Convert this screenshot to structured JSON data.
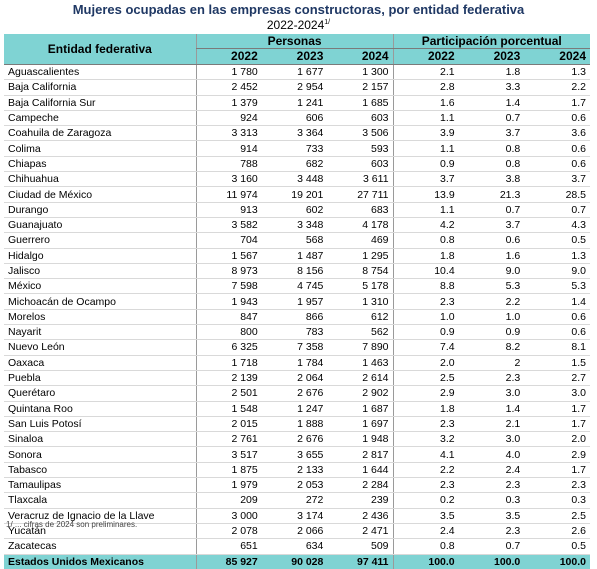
{
  "title": "Mujeres ocupadas en las empresas constructoras, por entidad federativa",
  "subtitle": "2022-2024",
  "subtitle_note": "1/",
  "headers": {
    "entity": "Entidad federativa",
    "group_persons": "Personas",
    "group_share": "Participación porcentual",
    "years": [
      "2022",
      "2023",
      "2024",
      "2022",
      "2023",
      "2024"
    ]
  },
  "rows": [
    [
      "Aguascalientes",
      "1 780",
      "1 677",
      "1 300",
      "2.1",
      "1.8",
      "1.3"
    ],
    [
      "Baja California",
      "2 452",
      "2 954",
      "2 157",
      "2.8",
      "3.3",
      "2.2"
    ],
    [
      "Baja California Sur",
      "1 379",
      "1 241",
      "1 685",
      "1.6",
      "1.4",
      "1.7"
    ],
    [
      "Campeche",
      "924",
      "606",
      "603",
      "1.1",
      "0.7",
      "0.6"
    ],
    [
      "Coahuila de Zaragoza",
      "3 313",
      "3 364",
      "3 506",
      "3.9",
      "3.7",
      "3.6"
    ],
    [
      "Colima",
      "914",
      "733",
      "593",
      "1.1",
      "0.8",
      "0.6"
    ],
    [
      "Chiapas",
      "788",
      "682",
      "603",
      "0.9",
      "0.8",
      "0.6"
    ],
    [
      "Chihuahua",
      "3 160",
      "3 448",
      "3 611",
      "3.7",
      "3.8",
      "3.7"
    ],
    [
      "Ciudad de México",
      "11 974",
      "19 201",
      "27 711",
      "13.9",
      "21.3",
      "28.5"
    ],
    [
      "Durango",
      "913",
      "602",
      "683",
      "1.1",
      "0.7",
      "0.7"
    ],
    [
      "Guanajuato",
      "3 582",
      "3 348",
      "4 178",
      "4.2",
      "3.7",
      "4.3"
    ],
    [
      "Guerrero",
      "704",
      "568",
      "469",
      "0.8",
      "0.6",
      "0.5"
    ],
    [
      "Hidalgo",
      "1 567",
      "1 487",
      "1 295",
      "1.8",
      "1.6",
      "1.3"
    ],
    [
      "Jalisco",
      "8 973",
      "8 156",
      "8 754",
      "10.4",
      "9.0",
      "9.0"
    ],
    [
      "México",
      "7 598",
      "4 745",
      "5 178",
      "8.8",
      "5.3",
      "5.3"
    ],
    [
      "Michoacán de Ocampo",
      "1 943",
      "1 957",
      "1 310",
      "2.3",
      "2.2",
      "1.4"
    ],
    [
      "Morelos",
      "847",
      "866",
      "612",
      "1.0",
      "1.0",
      "0.6"
    ],
    [
      "Nayarit",
      "800",
      "783",
      "562",
      "0.9",
      "0.9",
      "0.6"
    ],
    [
      "Nuevo León",
      "6 325",
      "7 358",
      "7 890",
      "7.4",
      "8.2",
      "8.1"
    ],
    [
      "Oaxaca",
      "1 718",
      "1 784",
      "1 463",
      "2.0",
      "2",
      "1.5"
    ],
    [
      "Puebla",
      "2 139",
      "2 064",
      "2 614",
      "2.5",
      "2.3",
      "2.7"
    ],
    [
      "Querétaro",
      "2 501",
      "2 676",
      "2 902",
      "2.9",
      "3.0",
      "3.0"
    ],
    [
      "Quintana Roo",
      "1 548",
      "1 247",
      "1 687",
      "1.8",
      "1.4",
      "1.7"
    ],
    [
      "San Luis Potosí",
      "2 015",
      "1 888",
      "1 697",
      "2.3",
      "2.1",
      "1.7"
    ],
    [
      "Sinaloa",
      "2 761",
      "2 676",
      "1 948",
      "3.2",
      "3.0",
      "2.0"
    ],
    [
      "Sonora",
      "3 517",
      "3 655",
      "2 817",
      "4.1",
      "4.0",
      "2.9"
    ],
    [
      "Tabasco",
      "1 875",
      "2 133",
      "1 644",
      "2.2",
      "2.4",
      "1.7"
    ],
    [
      "Tamaulipas",
      "1 979",
      "2 053",
      "2 284",
      "2.3",
      "2.3",
      "2.3"
    ],
    [
      "Tlaxcala",
      "209",
      "272",
      "239",
      "0.2",
      "0.3",
      "0.3"
    ],
    [
      "Veracruz de Ignacio de la Llave",
      "3 000",
      "3 174",
      "2 436",
      "3.5",
      "3.5",
      "2.5"
    ],
    [
      "Yucatán",
      "2 078",
      "2 066",
      "2 471",
      "2.4",
      "2.3",
      "2.6"
    ],
    [
      "Zacatecas",
      "651",
      "634",
      "509",
      "0.8",
      "0.7",
      "0.5"
    ]
  ],
  "total": [
    "Estados Unidos Mexicanos",
    "85 927",
    "90 028",
    "97 411",
    "100.0",
    "100.0",
    "100.0"
  ],
  "footnote": "1/ ... cifras de 2024 son preliminares."
}
